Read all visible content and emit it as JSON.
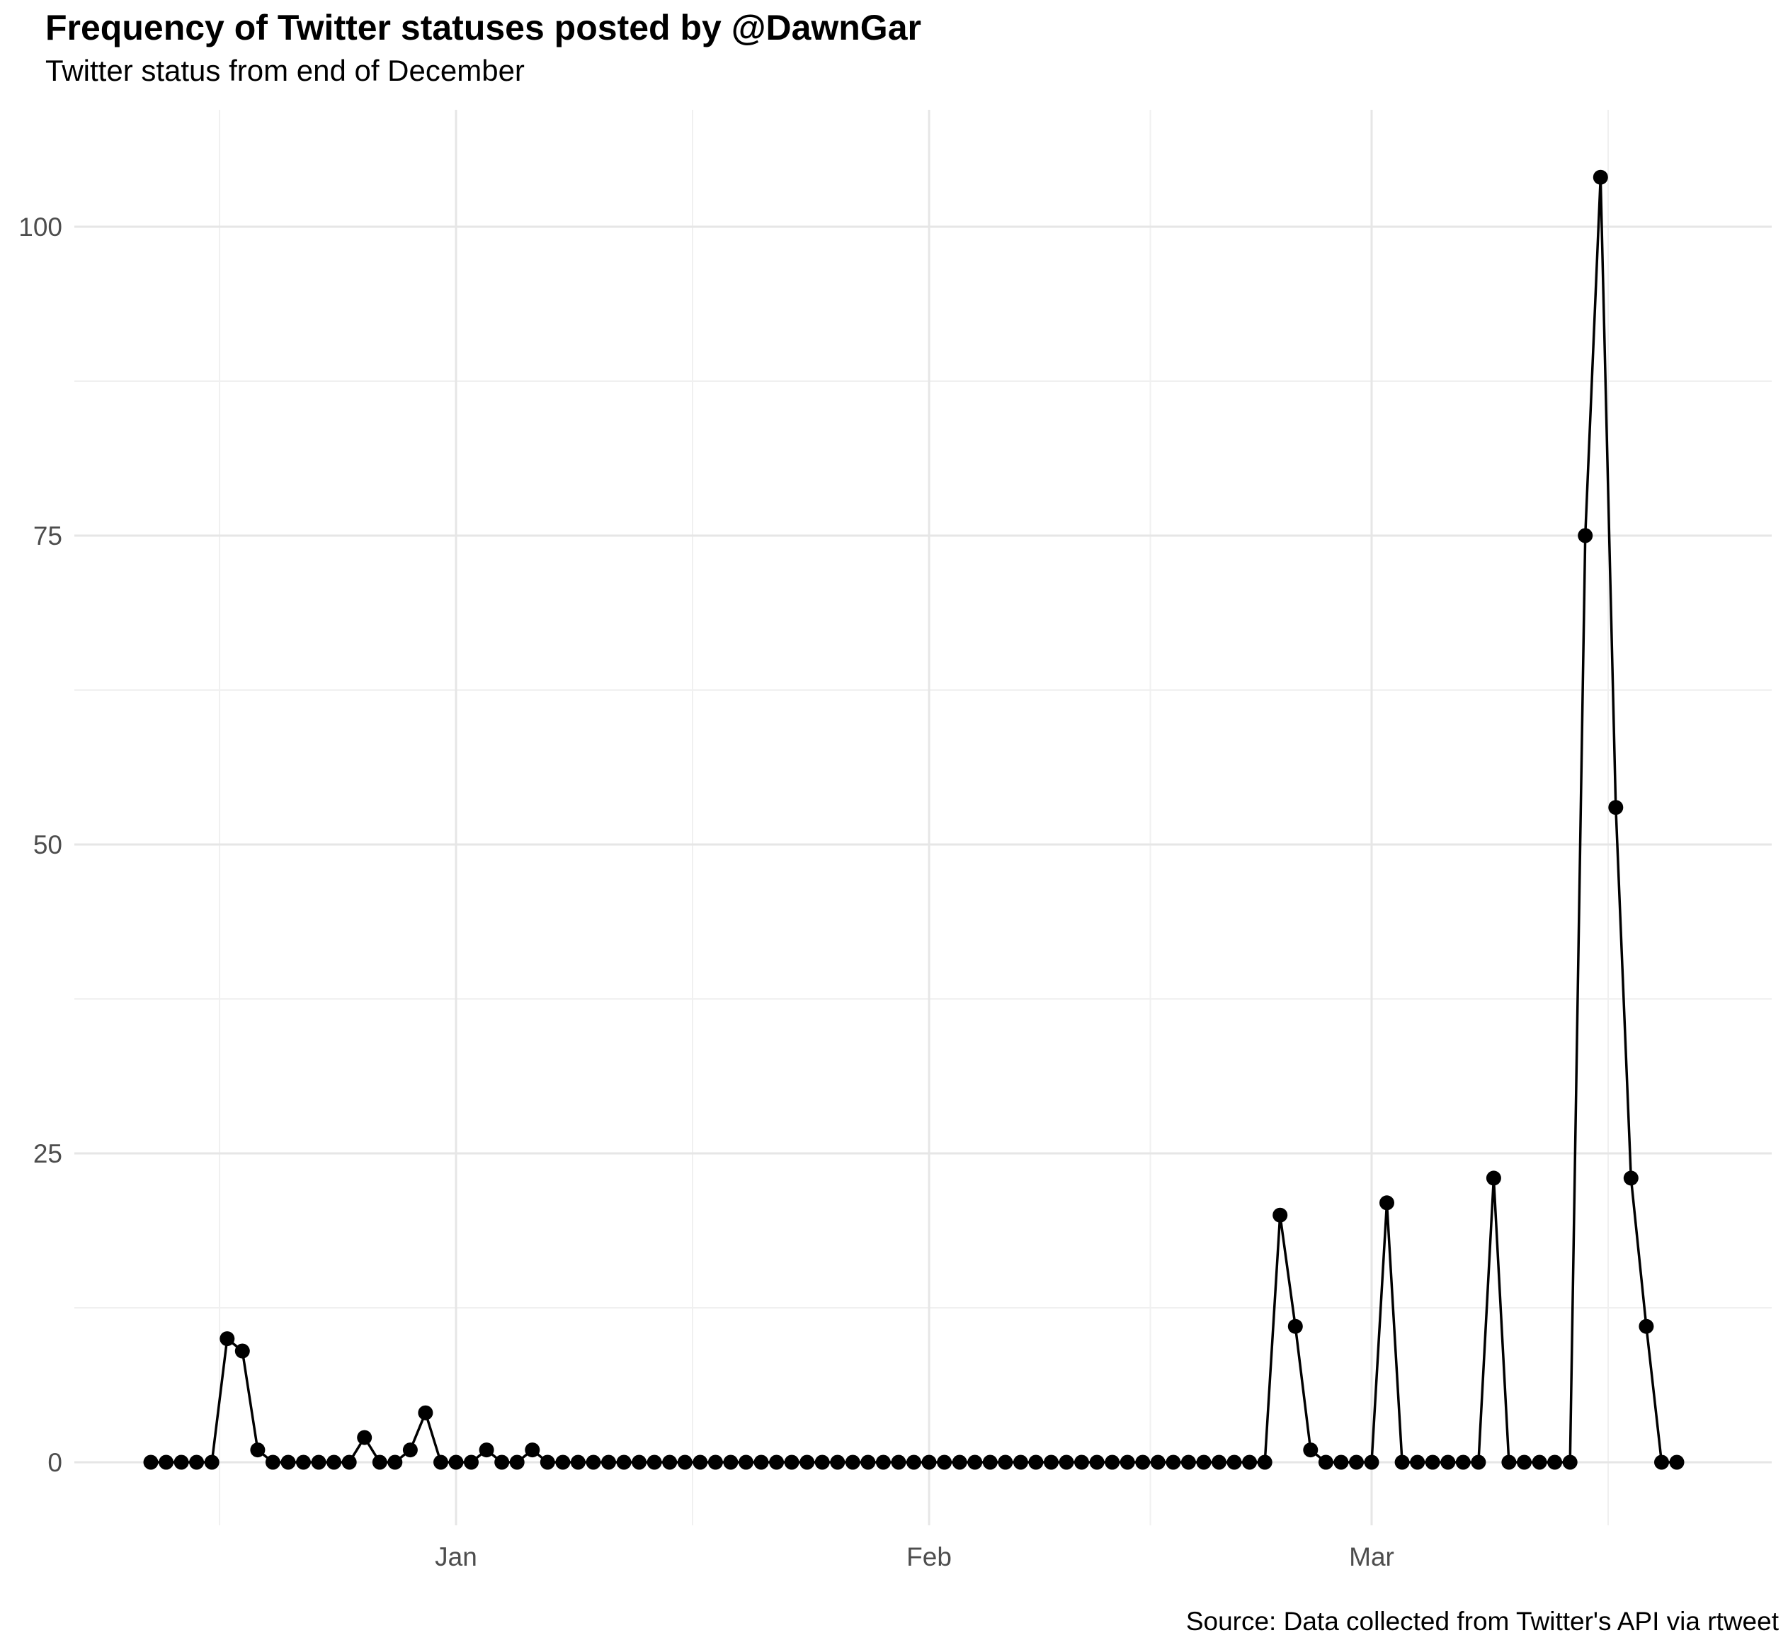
{
  "chart_data": {
    "type": "line",
    "title": "Frequency of Twitter statuses posted by @DawnGar",
    "subtitle": "Twitter status from end of December",
    "caption": "Source: Data collected from Twitter's API via rtweet",
    "ylabel": "",
    "xlabel": "",
    "y_ticks": [
      0,
      25,
      50,
      75,
      100
    ],
    "y_minor": [
      12.5,
      37.5,
      62.5,
      87.5
    ],
    "ylim": [
      -5,
      109
    ],
    "x_ticks": [
      {
        "label": "Jan",
        "day": 20
      },
      {
        "label": "Feb",
        "day": 51
      },
      {
        "label": "Mar",
        "day": 80
      }
    ],
    "x_minor_days": [
      4.5,
      35.5,
      65.5,
      95.5
    ],
    "x_unit": "day index (daily statuses, starting mid-December)",
    "legend": "none",
    "grid": "on",
    "values": [
      0,
      0,
      0,
      0,
      0,
      10,
      9,
      1,
      0,
      0,
      0,
      0,
      0,
      0,
      2,
      0,
      0,
      1,
      4,
      0,
      0,
      0,
      1,
      0,
      0,
      1,
      0,
      0,
      0,
      0,
      0,
      0,
      0,
      0,
      0,
      0,
      0,
      0,
      0,
      0,
      0,
      0,
      0,
      0,
      0,
      0,
      0,
      0,
      0,
      0,
      0,
      0,
      0,
      0,
      0,
      0,
      0,
      0,
      0,
      0,
      0,
      0,
      0,
      0,
      0,
      0,
      0,
      0,
      0,
      0,
      0,
      0,
      0,
      0,
      20,
      11,
      1,
      0,
      0,
      0,
      0,
      21,
      0,
      0,
      0,
      0,
      0,
      0,
      23,
      0,
      0,
      0,
      0,
      0,
      75,
      104,
      53,
      23,
      11,
      0,
      0
    ],
    "colors": {
      "line": "#000000",
      "point": "#000000",
      "grid_major": "#e6e6e6",
      "grid_minor": "#f0f0f0",
      "tick_label": "#4d4d4d",
      "background": "#ffffff"
    }
  }
}
